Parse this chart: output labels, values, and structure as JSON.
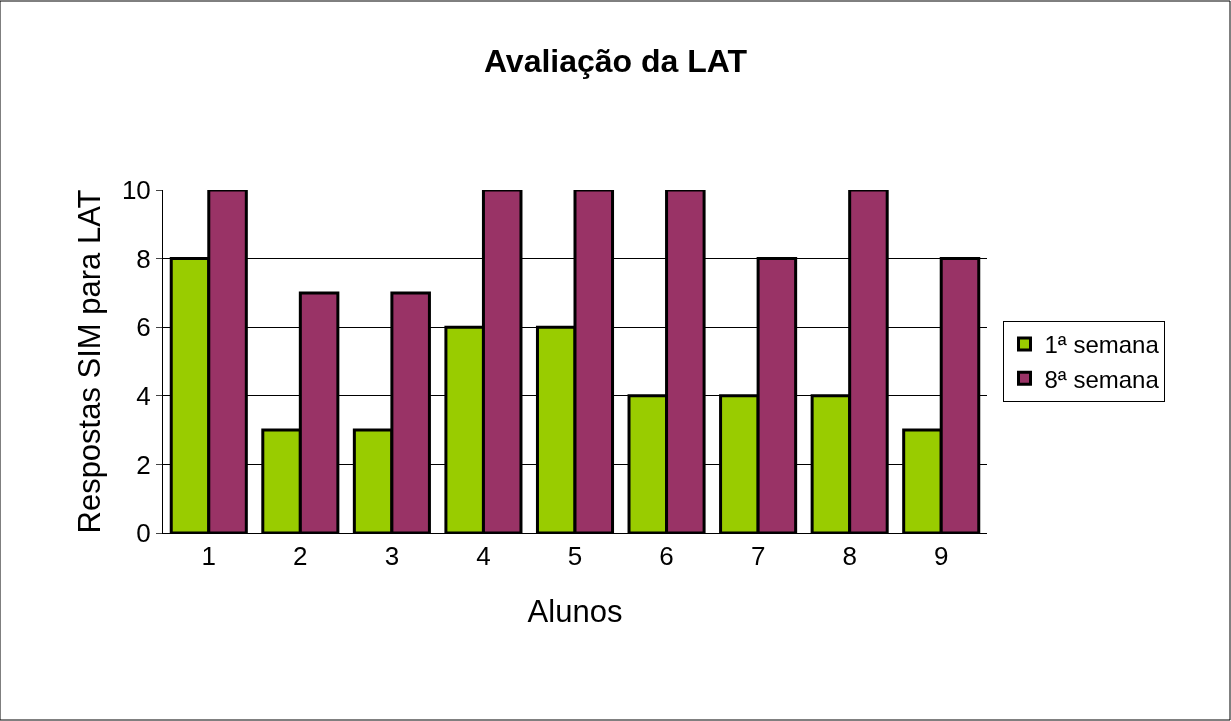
{
  "chart_data": {
    "type": "bar",
    "title": "Avaliação da LAT",
    "xlabel": "Alunos",
    "ylabel": "Respostas SIM para LAT",
    "categories": [
      "1",
      "2",
      "3",
      "4",
      "5",
      "6",
      "7",
      "8",
      "9"
    ],
    "series": [
      {
        "name": "1ª semana",
        "color": "#99cc00",
        "values": [
          8,
          3,
          3,
          6,
          6,
          4,
          4,
          4,
          3
        ]
      },
      {
        "name": "8ª semana",
        "color": "#993366",
        "values": [
          10,
          7,
          7,
          10,
          10,
          10,
          8,
          10,
          8
        ]
      }
    ],
    "ylim": [
      0,
      10
    ],
    "yticks": [
      0,
      2,
      4,
      6,
      8,
      10
    ],
    "grid": "y",
    "legend": "right"
  }
}
